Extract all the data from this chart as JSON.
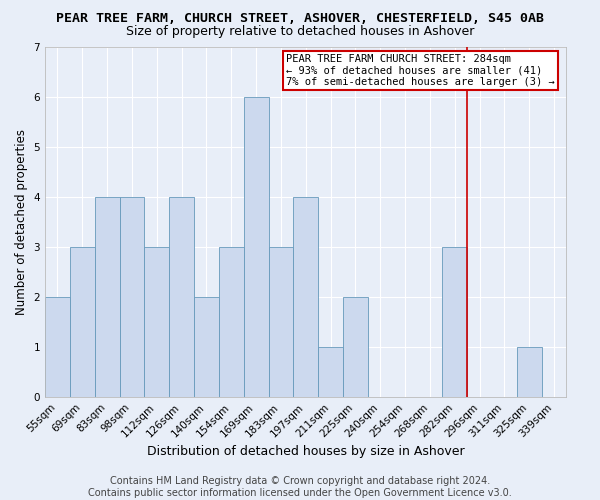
{
  "title": "PEAR TREE FARM, CHURCH STREET, ASHOVER, CHESTERFIELD, S45 0AB",
  "subtitle": "Size of property relative to detached houses in Ashover",
  "xlabel": "Distribution of detached houses by size in Ashover",
  "ylabel": "Number of detached properties",
  "bar_labels": [
    "55sqm",
    "69sqm",
    "83sqm",
    "98sqm",
    "112sqm",
    "126sqm",
    "140sqm",
    "154sqm",
    "169sqm",
    "183sqm",
    "197sqm",
    "211sqm",
    "225sqm",
    "240sqm",
    "254sqm",
    "268sqm",
    "282sqm",
    "296sqm",
    "311sqm",
    "325sqm",
    "339sqm"
  ],
  "bar_heights": [
    2,
    3,
    4,
    4,
    3,
    4,
    2,
    3,
    6,
    3,
    4,
    1,
    2,
    0,
    0,
    0,
    3,
    0,
    0,
    1,
    0
  ],
  "bar_color": "#ccd9ee",
  "bar_edgecolor": "#6699bb",
  "vline_x_index": 16,
  "vline_color": "#cc0000",
  "annotation_text": "PEAR TREE FARM CHURCH STREET: 284sqm\n← 93% of detached houses are smaller (41)\n7% of semi-detached houses are larger (3) →",
  "annotation_box_edgecolor": "#cc0000",
  "annotation_box_facecolor": "white",
  "ylim": [
    0,
    7
  ],
  "yticks": [
    0,
    1,
    2,
    3,
    4,
    5,
    6,
    7
  ],
  "footer_text": "Contains HM Land Registry data © Crown copyright and database right 2024.\nContains public sector information licensed under the Open Government Licence v3.0.",
  "title_fontsize": 9.5,
  "subtitle_fontsize": 9,
  "xlabel_fontsize": 9,
  "ylabel_fontsize": 8.5,
  "tick_fontsize": 7.5,
  "annot_fontsize": 7.5,
  "footer_fontsize": 7,
  "background_color": "#e8eef8",
  "plot_bg_color": "#e8eef8",
  "grid_color": "white"
}
